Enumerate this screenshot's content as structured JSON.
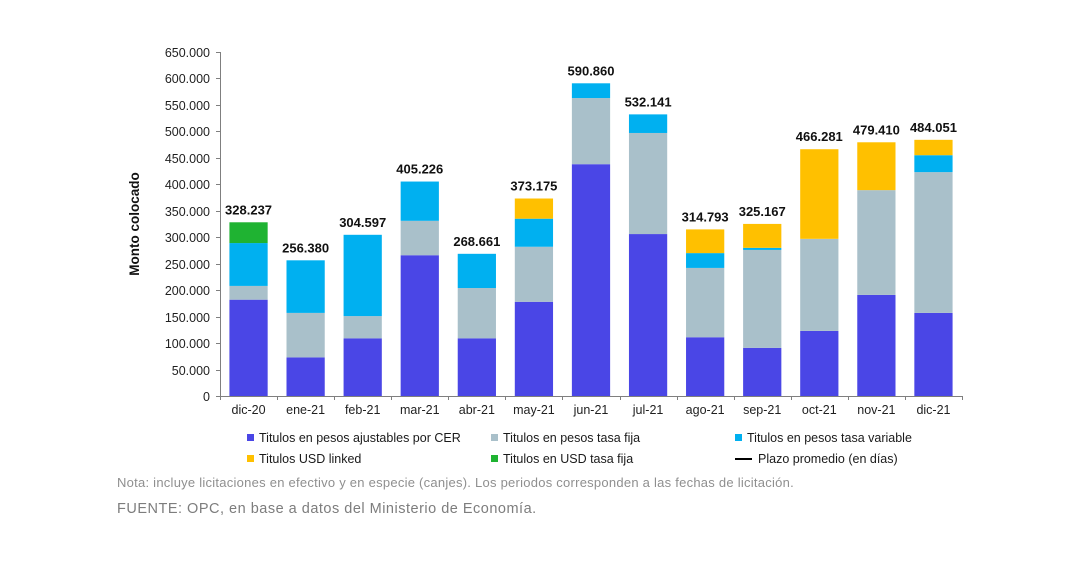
{
  "chart_data": {
    "type": "bar",
    "stacked": true,
    "ylabel": "Monto colocado",
    "categories": [
      "dic-20",
      "ene-21",
      "feb-21",
      "mar-21",
      "abr-21",
      "may-21",
      "jun-21",
      "jul-21",
      "ago-21",
      "sep-21",
      "oct-21",
      "nov-21",
      "dic-21"
    ],
    "ylim": [
      0,
      650000
    ],
    "yticks": [
      0,
      50000,
      100000,
      150000,
      200000,
      250000,
      300000,
      350000,
      400000,
      450000,
      500000,
      550000,
      600000,
      650000
    ],
    "ytick_labels": [
      "0",
      "50.000",
      "100.000",
      "150.000",
      "200.000",
      "250.000",
      "300.000",
      "350.000",
      "400.000",
      "450.000",
      "500.000",
      "550.000",
      "600.000",
      "650.000"
    ],
    "series": [
      {
        "name": "Titulos en pesos ajustables por CER",
        "color": "#4a46e6",
        "values": [
          182000,
          73000,
          109000,
          266000,
          109000,
          178000,
          438000,
          306000,
          111000,
          91000,
          123000,
          191000,
          157000
        ]
      },
      {
        "name": "Titulos en pesos tasa fija",
        "color": "#a9c0ca",
        "values": [
          26000,
          84000,
          42000,
          65000,
          95000,
          104000,
          125000,
          191000,
          131000,
          185000,
          174000,
          198000,
          266000
        ]
      },
      {
        "name": "Titulos en pesos tasa variable",
        "color": "#00b0f0",
        "values": [
          81000,
          99380,
          153597,
          74226,
          64661,
          53000,
          27860,
          35141,
          28000,
          4000,
          0,
          0,
          32000
        ]
      },
      {
        "name": "Titulos USD linked",
        "color": "#ffc000",
        "values": [
          0,
          0,
          0,
          0,
          0,
          38175,
          0,
          0,
          44793,
          45167,
          169281,
          90410,
          29051
        ]
      },
      {
        "name": "Titulos en USD tasa fija",
        "color": "#1fb332",
        "values": [
          39237,
          0,
          0,
          0,
          0,
          0,
          0,
          0,
          0,
          0,
          0,
          0,
          0
        ]
      }
    ],
    "line_series": {
      "name": "Plazo promedio (en días)",
      "color": "#000000"
    },
    "totals": [
      328237,
      256380,
      304597,
      405226,
      268661,
      373175,
      590860,
      532141,
      314793,
      325167,
      466281,
      479410,
      484051
    ],
    "data_labels": [
      "328.237",
      "256.380",
      "304.597",
      "405.226",
      "268.661",
      "373.175",
      "590.860",
      "532.141",
      "314.793",
      "325.167",
      "466.281",
      "479.410",
      "484.051"
    ],
    "legend_position": "bottom",
    "grid": false
  },
  "footnotes": {
    "note": "Nota: incluye licitaciones en efectivo y en especie (canjes). Los periodos corresponden a las fechas de licitación.",
    "source": "FUENTE: OPC, en base a datos del Ministerio de Economía."
  }
}
